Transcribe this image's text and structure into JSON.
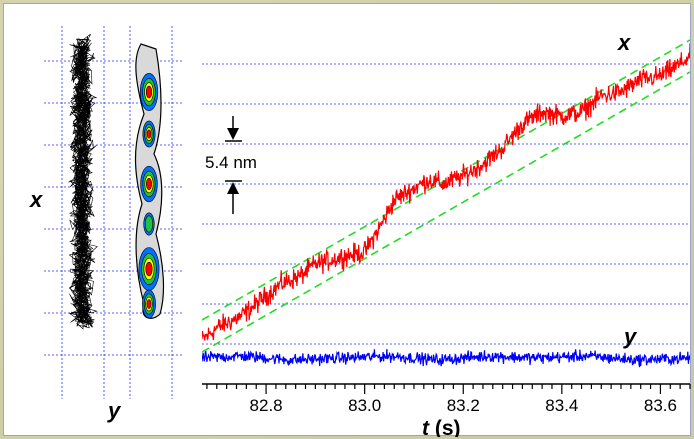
{
  "colors": {
    "x_trace": "#ff0000",
    "y_trace": "#0000ff",
    "guide_lines": "#22dd22",
    "grid": "#2a2aff",
    "trajectory": "#000000",
    "contour": [
      "#d9d9d9",
      "#0070ff",
      "#20c040",
      "#ffff00",
      "#ff0000"
    ]
  },
  "scale_bar_label": "5.4 nm",
  "trajectory_panel": {
    "vertical_label": "x",
    "horizontal_label": "y"
  },
  "chart_data": {
    "type": "line",
    "xlabel_italic": "t",
    "xlabel_unit": "(s)",
    "xlim": [
      82.67,
      83.66
    ],
    "x_ticks": [
      82.8,
      83.0,
      83.2,
      83.4,
      83.6
    ],
    "x_tick_labels": [
      "82.8",
      "83.0",
      "83.2",
      "83.4",
      "83.6"
    ],
    "grid": true,
    "step_size_nm": 5.4,
    "y_range_steps": [
      -0.2,
      7.6
    ],
    "series": [
      {
        "name": "x",
        "x": [
          82.67,
          82.7,
          82.75,
          82.8,
          82.83,
          82.87,
          82.9,
          82.93,
          82.96,
          83.0,
          83.03,
          83.06,
          83.1,
          83.13,
          83.16,
          83.2,
          83.24,
          83.28,
          83.32,
          83.36,
          83.4,
          83.44,
          83.48,
          83.52,
          83.56,
          83.6,
          83.64,
          83.66
        ],
        "y": [
          0.1,
          0.4,
          0.7,
          1.2,
          1.5,
          1.7,
          2.0,
          2.1,
          2.2,
          2.3,
          2.9,
          3.6,
          3.9,
          4.1,
          4.0,
          4.2,
          4.5,
          4.9,
          5.5,
          5.8,
          5.7,
          5.8,
          6.2,
          6.3,
          6.6,
          6.7,
          7.0,
          7.2
        ]
      },
      {
        "name": "y",
        "x": [
          82.67,
          82.75,
          82.85,
          82.95,
          83.05,
          83.15,
          83.25,
          83.35,
          83.45,
          83.55,
          83.66
        ],
        "y": [
          0.0,
          0.05,
          -0.05,
          0.0,
          0.05,
          -0.05,
          0.05,
          0.0,
          0.05,
          -0.05,
          0.0
        ]
      }
    ],
    "guides": [
      {
        "x": [
          82.67,
          83.66
        ],
        "y": [
          0.6,
          7.6
        ]
      },
      {
        "x": [
          82.67,
          83.66
        ],
        "y": [
          -0.2,
          6.8
        ]
      }
    ]
  }
}
